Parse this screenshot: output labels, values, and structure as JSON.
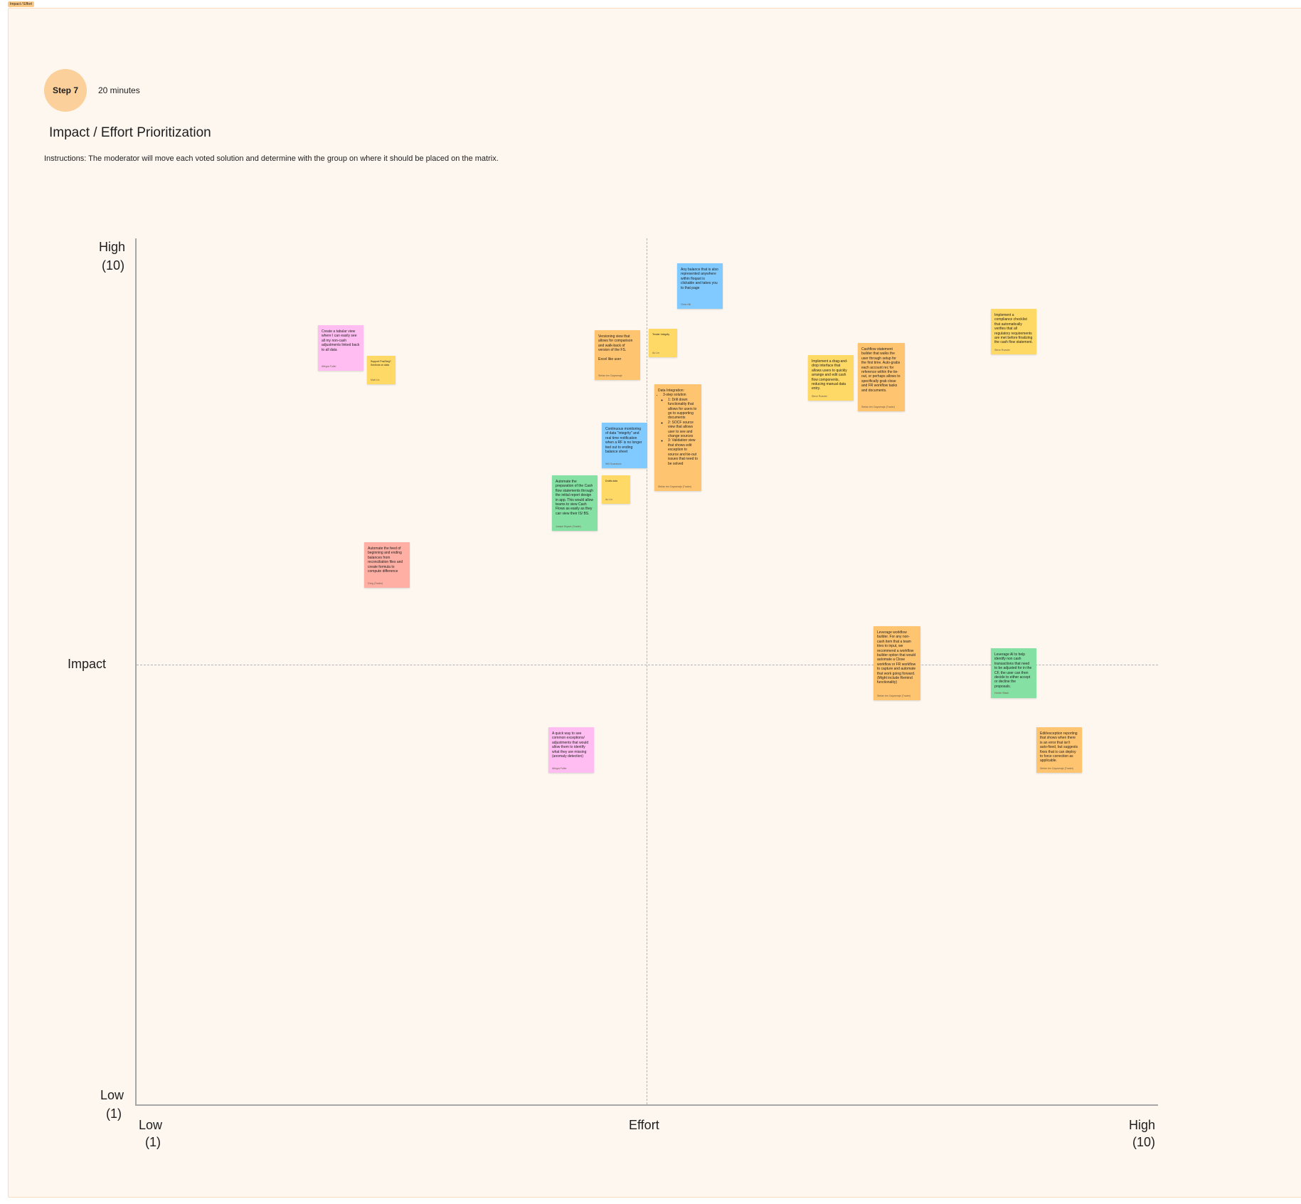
{
  "frame_tag": "Impact / Effort",
  "header": {
    "step_label": "Step 7",
    "duration": "20 minutes",
    "title": "Impact / Effort Prioritization",
    "instructions": "Instructions: The moderator will move each voted solution and determine with the group on where it should be placed on the matrix."
  },
  "matrix": {
    "y_axis": {
      "label": "Impact",
      "high": "High",
      "high_value": "(10)",
      "low": "Low",
      "low_value": "(1)"
    },
    "x_axis": {
      "label": "Effort",
      "low": "Low",
      "low_value": "(1)",
      "high": "High",
      "high_value": "(10)"
    }
  },
  "colors": {
    "pink": "#ffbdf2",
    "yellow": "#ffd966",
    "red": "#ffafa3",
    "blue": "#80caff",
    "orange": "#ffc470",
    "green": "#85e0a3",
    "frame_bg": "#fef7f0",
    "step_circle": "#fbd09a"
  },
  "notes": [
    {
      "color": "pink",
      "text": "Create a tabular view where I can easily see all my non-cash adjustments linked back to all data",
      "author": "Allegra Fuller"
    },
    {
      "color": "yellow",
      "text": "Support Pos/Neg? Sections on data",
      "author": "Matt Lin"
    },
    {
      "color": "red",
      "text": "Automate the feed of beginning and ending balances from reconciliation files and create formula to compute difference",
      "author": "Greg (Trader)"
    },
    {
      "color": "blue",
      "text": "Any balance that is also represented anywhere within floqast is clickable and takes you to that page",
      "author": "Chris Hill"
    },
    {
      "color": "orange",
      "text": "Versioning view that allows for comparison and walk-back of version of the FS.\n\nExcel like user",
      "author": "Stefan ten Gayweraje"
    },
    {
      "color": "yellow",
      "text": "Tender Integrity",
      "author": "Au Lin"
    },
    {
      "color": "orange",
      "text": "Data Integration:",
      "list": [
        "3-step solution"
      ],
      "sublist": [
        "1: Drill down functionality that allows for users to go to supporting documents",
        "2: SOCF source view that allows user to see and change sources",
        "3: Validation view that shows edit exception to source and tie-out issues that need to be solved"
      ],
      "author": "Stefan ten Gayweraje (Trader)"
    },
    {
      "color": "blue",
      "text": "Continuous monitoring of data \"integrity\" and real time notification when a RF is no longer tied out to ending balance sheet",
      "author": "Will Guarascio"
    },
    {
      "color": "yellow",
      "text": "Drafts data",
      "author": "Au Lin"
    },
    {
      "color": "green",
      "text": "Automate the preparation of the Cash flow statements through the initial report design in app. This would allow teams to view Cash Flows as easily as they can view their IS/ BS.",
      "author": "Joseph Bryant (Trader)"
    },
    {
      "color": "yellow",
      "text": "Implement a drag-and-drop interface that allows users to quickly arrange and edit cash flow components, reducing manual data entry.",
      "author": "Steve Ruesler"
    },
    {
      "color": "orange",
      "text": "Cashflow statement builder that walks the user through setup for the first time. Auto-grabs each account rec for reference within the tie-out, or perhaps allows to specifically grab close and FR workflow tasks and documents.",
      "author": "Stefan ten Gayweraje (Trader)"
    },
    {
      "color": "yellow",
      "text": "Implement a compliance checklist that automatically verifies that all regulatory requirements are met before finalizing the cash flow statement.",
      "author": "Steve Ruesler"
    },
    {
      "color": "orange",
      "text": "Leverage workflow builder. For any non-cash item that a team tries to input, we recommend a workflow builder option that would automate a Close workflow or FR workflow to capture and automate that work going forward. (Might include Remind functionality)",
      "author": "Stefan ten Gayweraje (Trader)"
    },
    {
      "color": "green",
      "text": "Leverage AI to help identify non cash transactions that need to be adjusted for in the CF, the user can then decide to either accept or decline the proposals.",
      "author": "Hunter Black"
    },
    {
      "color": "pink",
      "text": "A quick way to see common exceptions/ adjustments that would allow them to identify what they are missing (anomaly detection)",
      "author": "Allegra Fuller"
    },
    {
      "color": "orange",
      "text": "Edit/exception reporting that shows when there is an error that isn't auto-fixed, but suggests fixes that is can deploy to force correction as applicable.",
      "author": "Stefan ten Gayweraje (Trader)"
    }
  ]
}
